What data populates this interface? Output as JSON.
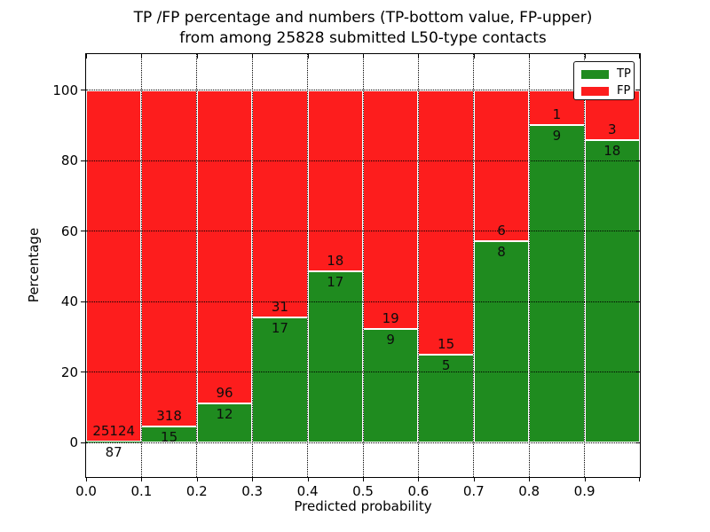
{
  "title": {
    "line1": "TP /FP percentage and numbers (TP-bottom value, FP-upper)",
    "line2": "from among 25828 submitted L50-type contacts"
  },
  "axis": {
    "x_label": "Predicted probability",
    "y_label": "Percentage",
    "x_tick_labels": [
      "0.0",
      "0.1",
      "0.2",
      "0.3",
      "0.4",
      "0.5",
      "0.6",
      "0.7",
      "0.8",
      "0.9"
    ],
    "y_tick_labels": [
      "0",
      "20",
      "40",
      "60",
      "80",
      "100"
    ]
  },
  "legend": {
    "items": [
      {
        "label": "TP",
        "color": "#1f8b1f"
      },
      {
        "label": "FP",
        "color": "#fd1d1d"
      }
    ]
  },
  "colors": {
    "tp_green": "#1f8b1f",
    "fp_red": "#fd1d1d",
    "bar_edge": "#ffffff",
    "grid": "#000000"
  },
  "chart_data": {
    "type": "bar",
    "stacked": true,
    "normalized_to_100_percent": true,
    "title": "TP /FP percentage and numbers (TP-bottom value, FP-upper) from among 25828 submitted L50-type contacts",
    "xlabel": "Predicted probability",
    "ylabel": "Percentage",
    "total_contacts": 25828,
    "x_bin_edges": [
      0.0,
      0.1,
      0.2,
      0.3,
      0.4,
      0.5,
      0.6,
      0.7,
      0.8,
      0.9,
      1.0
    ],
    "categories": [
      "0.0-0.1",
      "0.1-0.2",
      "0.2-0.3",
      "0.3-0.4",
      "0.4-0.5",
      "0.5-0.6",
      "0.6-0.7",
      "0.7-0.8",
      "0.8-0.9",
      "0.9-1.0"
    ],
    "series": [
      {
        "name": "TP",
        "color": "#1f8b1f",
        "counts": [
          87,
          15,
          12,
          17,
          17,
          9,
          5,
          8,
          9,
          18
        ]
      },
      {
        "name": "FP",
        "color": "#fd1d1d",
        "counts": [
          25124,
          318,
          96,
          31,
          18,
          19,
          15,
          6,
          1,
          3
        ]
      }
    ],
    "tp_percent_of_bin": [
      0.35,
      4.5,
      11.11,
      35.42,
      48.57,
      32.14,
      25.0,
      57.14,
      90.0,
      85.71
    ],
    "ylim": [
      -10,
      110
    ],
    "xlim": [
      0.0,
      1.0
    ],
    "grid": true,
    "grid_style": "dotted",
    "legend_position": "upper right",
    "value_labels": "FP count above TP/FP boundary, TP count below boundary"
  }
}
